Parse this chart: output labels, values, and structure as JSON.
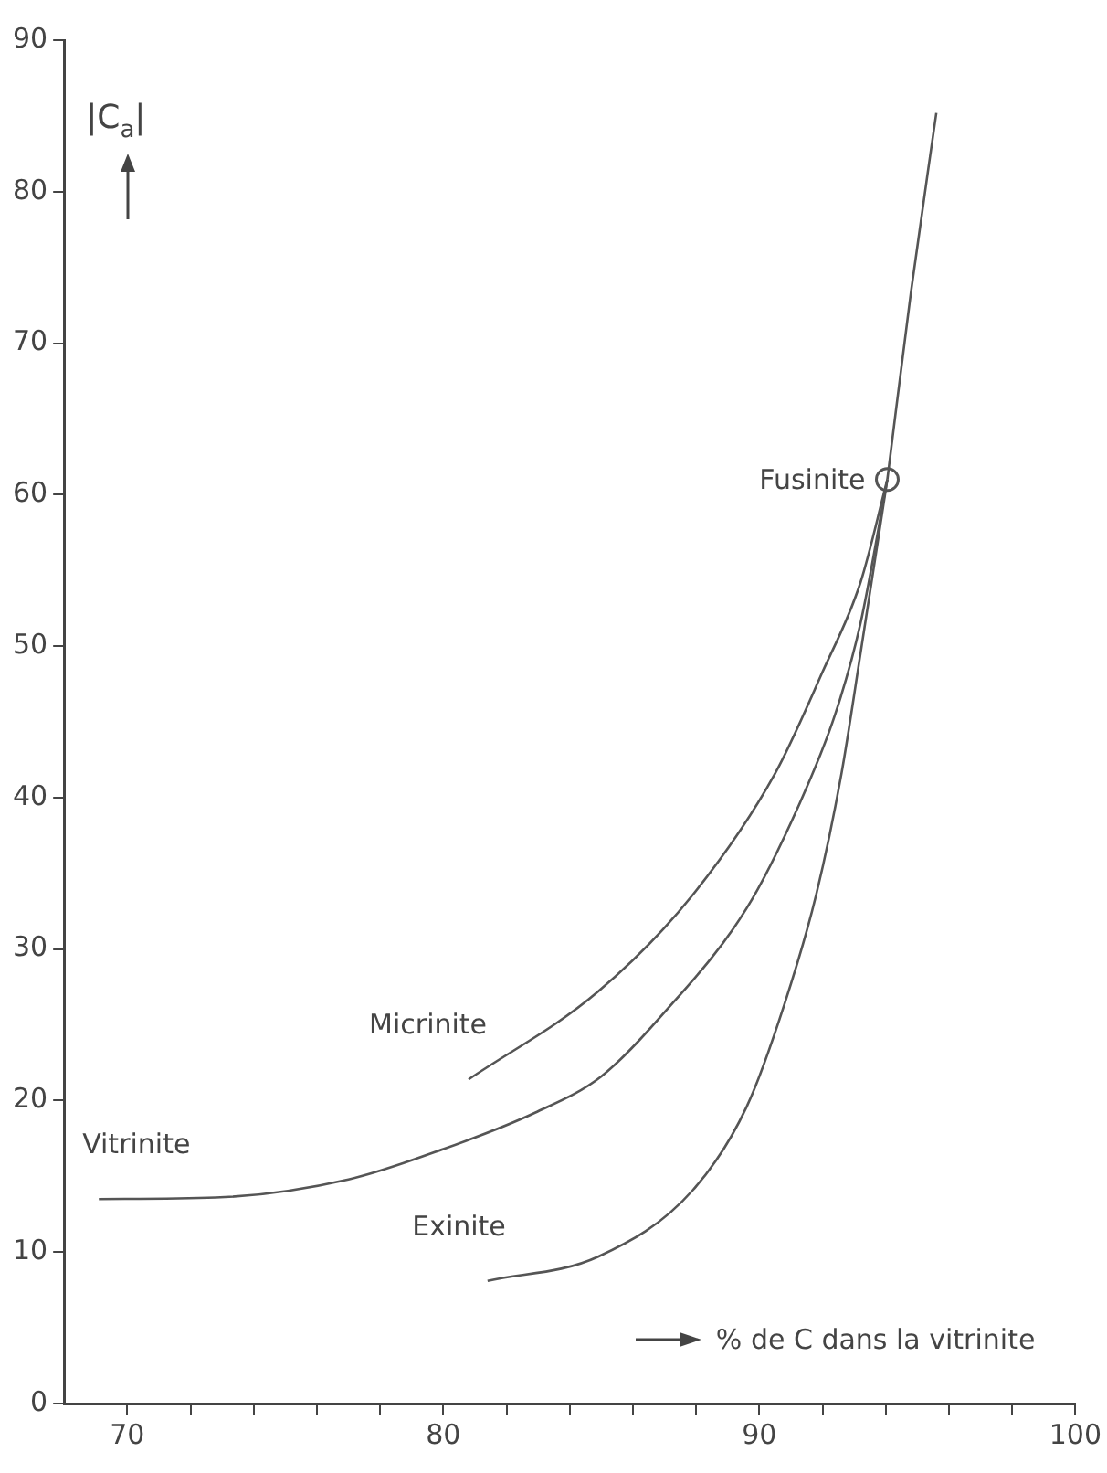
{
  "chart_data": {
    "type": "line",
    "xlabel": "% de C dans la vitrinite",
    "ylabel": "|C$_{a}$|",
    "xlim": [
      68,
      100
    ],
    "ylim": [
      0,
      90
    ],
    "xticks": [
      {
        "value": 70,
        "label": "70"
      },
      {
        "value": 72,
        "label": null
      },
      {
        "value": 74,
        "label": null
      },
      {
        "value": 76,
        "label": null
      },
      {
        "value": 78,
        "label": null
      },
      {
        "value": 80,
        "label": "80"
      },
      {
        "value": 82,
        "label": null
      },
      {
        "value": 84,
        "label": null
      },
      {
        "value": 86,
        "label": null
      },
      {
        "value": 88,
        "label": null
      },
      {
        "value": 90,
        "label": "90"
      },
      {
        "value": 92,
        "label": null
      },
      {
        "value": 94,
        "label": null
      },
      {
        "value": 96,
        "label": null
      },
      {
        "value": 98,
        "label": null
      },
      {
        "value": 100,
        "label": "100"
      }
    ],
    "yticks": [
      0,
      10,
      20,
      30,
      40,
      50,
      60,
      70,
      80,
      90
    ],
    "marker": "none",
    "line_style": "solid",
    "legend": false,
    "series": [
      {
        "name": "Vitrinite",
        "color": "#555555",
        "x": [
          69.1,
          72.8,
          77,
          80,
          82.9,
          85,
          86.9,
          89.6,
          91.25,
          92.4,
          93.2,
          94.05
        ],
        "values": [
          13.5,
          13.6,
          14.8,
          16.8,
          19.2,
          21.6,
          25.6,
          32.7,
          39.5,
          45.5,
          51.5,
          61
        ]
      },
      {
        "name": "Micrinite",
        "color": "#555555",
        "x": [
          80.8,
          84.9,
          87.9,
          90.5,
          92,
          93.2,
          94.05
        ],
        "values": [
          21.4,
          27.2,
          33.6,
          41.6,
          48.3,
          54.2,
          61
        ]
      },
      {
        "name": "Exinite",
        "color": "#555555",
        "x": [
          81.4,
          84.9,
          87.9,
          89.6,
          90.8,
          91.8,
          92.6,
          93.2,
          94.05
        ],
        "values": [
          8.1,
          9.7,
          14.1,
          19.6,
          26.4,
          33.6,
          41.6,
          49.5,
          61
        ]
      },
      {
        "color": "#555555",
        "x": [
          94.05,
          94.8,
          95.6
        ],
        "values": [
          61,
          73.4,
          85.2
        ]
      },
      {
        "name": "Fusinite",
        "type": "scatter",
        "marker": "circle",
        "color": "#555555",
        "x": [
          94.05
        ],
        "values": [
          61
        ]
      }
    ]
  }
}
